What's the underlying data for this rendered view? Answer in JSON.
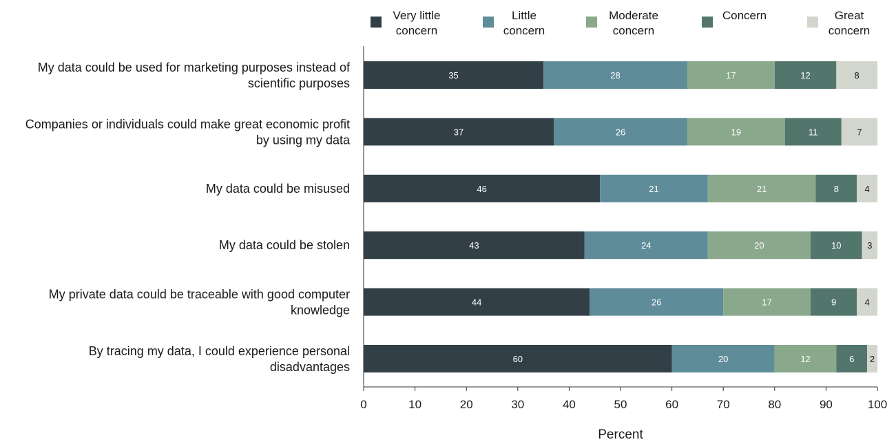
{
  "chart_data": {
    "type": "bar",
    "orientation": "horizontal",
    "stacked": true,
    "title": "",
    "xlabel": "Percent",
    "ylabel": "",
    "xlim": [
      0,
      100
    ],
    "xticks": [
      0,
      10,
      20,
      30,
      40,
      50,
      60,
      70,
      80,
      90,
      100
    ],
    "grid": false,
    "legend_position": "top",
    "categories": [
      [
        "My data could be used for marketing purposes instead of",
        "scientific purposes"
      ],
      [
        "Companies or individuals could make great economic profit",
        "by using my data"
      ],
      [
        "My data could be misused"
      ],
      [
        "My data could be stolen"
      ],
      [
        "My private data could be traceable with good computer",
        "knowledge"
      ],
      [
        "By tracing my data, I could experience personal",
        "disadvantages"
      ]
    ],
    "series": [
      {
        "name": [
          "Very little",
          "concern"
        ],
        "color": "#323f47",
        "label_color": "#ffffff",
        "values": [
          35,
          37,
          46,
          43,
          44,
          60
        ]
      },
      {
        "name": [
          "Little",
          "concern"
        ],
        "color": "#5f8c99",
        "label_color": "#ffffff",
        "values": [
          28,
          26,
          21,
          24,
          26,
          20
        ]
      },
      {
        "name": [
          "Moderate",
          "concern"
        ],
        "color": "#8aa88c",
        "label_color": "#ffffff",
        "values": [
          17,
          19,
          21,
          20,
          17,
          12
        ]
      },
      {
        "name": [
          "Concern"
        ],
        "color": "#52756c",
        "label_color": "#ffffff",
        "values": [
          12,
          11,
          8,
          10,
          9,
          6
        ]
      },
      {
        "name": [
          "Great",
          "concern"
        ],
        "color": "#d2d6cd",
        "label_color": "#1a1a1a",
        "values": [
          8,
          7,
          4,
          3,
          4,
          2
        ]
      }
    ]
  }
}
